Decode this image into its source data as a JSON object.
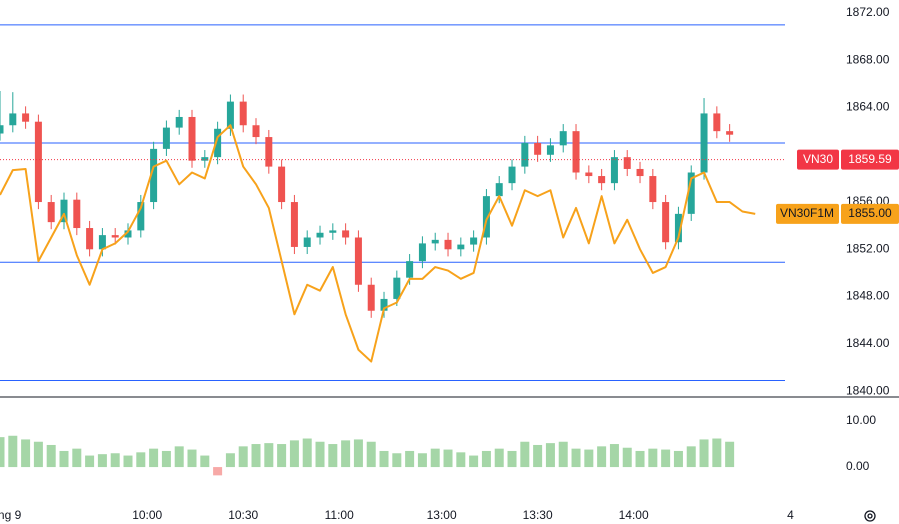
{
  "chart_data": {
    "type": "candlestick",
    "x": [
      0,
      4,
      8,
      12,
      16,
      20,
      24,
      28,
      32,
      36,
      40,
      44,
      48,
      52,
      56,
      60,
      64,
      68,
      72,
      76,
      80,
      84,
      88,
      92,
      96,
      100,
      104,
      108,
      112,
      116,
      120,
      124,
      128,
      132,
      136,
      140,
      144,
      148,
      152,
      156,
      160,
      164,
      168,
      172,
      176,
      180,
      184,
      188,
      192,
      196,
      200,
      204,
      208,
      212,
      216,
      220,
      224,
      228
    ],
    "xlim": [
      0,
      245.3
    ],
    "xticks": [
      {
        "value": 3,
        "label": "ng 9"
      },
      {
        "value": 46,
        "label": "10:00"
      },
      {
        "value": 76,
        "label": "10:30"
      },
      {
        "value": 106,
        "label": "11:00"
      },
      {
        "value": 138,
        "label": "13:00"
      },
      {
        "value": 168,
        "label": "13:30"
      },
      {
        "value": 198,
        "label": "14:00"
      },
      {
        "value": 247,
        "label": "4"
      }
    ],
    "ylim": [
      1839.5,
      1873.1
    ],
    "yticks": [
      {
        "value": 1872,
        "label": "1872.00"
      },
      {
        "value": 1868,
        "label": "1868.00"
      },
      {
        "value": 1864,
        "label": "1864.00"
      },
      {
        "value": 1856,
        "label": "1856.00"
      },
      {
        "value": 1852,
        "label": "1852.00"
      },
      {
        "value": 1848,
        "label": "1848.00"
      },
      {
        "value": 1844,
        "label": "1844.00"
      },
      {
        "value": 1840,
        "label": "1840.00"
      }
    ],
    "series": [
      {
        "name": "VN30",
        "color": "#f23645",
        "up_color": "#26a69a",
        "down_color": "#ef5350",
        "last": 1859.59,
        "open": [
          1861.8,
          1862.5,
          1863.5,
          1862.8,
          1856.0,
          1854.3,
          1856.2,
          1853.8,
          1852.0,
          1853.2,
          1853.0,
          1853.6,
          1856.0,
          1860.5,
          1862.3,
          1863.2,
          1859.5,
          1859.8,
          1862.2,
          1864.5,
          1862.5,
          1861.5,
          1859.0,
          1856.0,
          1852.2,
          1853.0,
          1853.4,
          1853.6,
          1853.0,
          1849.0,
          1846.8,
          1847.8,
          1849.6,
          1851.0,
          1852.5,
          1852.8,
          1852.0,
          1852.4,
          1853.0,
          1856.5,
          1857.6,
          1859.0,
          1861.0,
          1860.0,
          1860.8,
          1862.0,
          1858.5,
          1858.2,
          1857.6,
          1859.8,
          1858.8,
          1858.2,
          1856.0,
          1852.6,
          1855.0,
          1858.5,
          1863.5,
          1862.0
        ],
        "high": [
          1865.4,
          1865.3,
          1864.1,
          1863.4,
          1856.6,
          1856.8,
          1856.8,
          1854.4,
          1853.8,
          1853.8,
          1854.2,
          1856.6,
          1861.1,
          1862.9,
          1863.8,
          1863.8,
          1860.4,
          1862.8,
          1865.1,
          1865.1,
          1863.1,
          1862.1,
          1859.6,
          1856.6,
          1853.6,
          1854.0,
          1854.2,
          1854.2,
          1853.6,
          1849.6,
          1848.4,
          1850.2,
          1851.6,
          1853.1,
          1853.4,
          1853.4,
          1853.0,
          1853.6,
          1857.1,
          1858.2,
          1859.6,
          1861.6,
          1861.6,
          1861.4,
          1862.6,
          1862.6,
          1859.1,
          1858.8,
          1860.4,
          1860.4,
          1859.4,
          1858.8,
          1856.6,
          1855.6,
          1859.1,
          1864.8,
          1864.1,
          1862.6
        ],
        "low": [
          1861.2,
          1861.9,
          1862.2,
          1855.4,
          1853.7,
          1853.7,
          1853.2,
          1851.4,
          1851.4,
          1852.4,
          1852.4,
          1853.0,
          1855.4,
          1859.9,
          1861.7,
          1858.9,
          1858.9,
          1859.2,
          1861.6,
          1861.9,
          1860.9,
          1858.4,
          1855.4,
          1851.6,
          1851.6,
          1852.4,
          1852.8,
          1852.4,
          1848.4,
          1846.2,
          1846.2,
          1847.2,
          1849.0,
          1850.4,
          1851.9,
          1851.4,
          1851.4,
          1851.8,
          1852.4,
          1855.9,
          1857.0,
          1858.4,
          1859.4,
          1859.4,
          1860.2,
          1857.9,
          1857.6,
          1857.0,
          1857.0,
          1858.2,
          1857.6,
          1855.4,
          1852.0,
          1852.0,
          1854.4,
          1857.9,
          1861.4,
          1861.1
        ],
        "close": [
          1862.5,
          1863.5,
          1862.8,
          1856.0,
          1854.3,
          1856.2,
          1853.8,
          1852.0,
          1853.2,
          1853.0,
          1853.6,
          1856.0,
          1860.5,
          1862.3,
          1863.2,
          1859.5,
          1859.8,
          1862.2,
          1864.5,
          1862.5,
          1861.5,
          1859.0,
          1856.0,
          1852.2,
          1853.0,
          1853.4,
          1853.6,
          1853.0,
          1849.0,
          1846.8,
          1847.8,
          1849.6,
          1851.0,
          1852.5,
          1852.8,
          1852.0,
          1852.4,
          1853.0,
          1856.5,
          1857.6,
          1859.0,
          1861.0,
          1860.0,
          1860.8,
          1862.0,
          1858.5,
          1858.2,
          1857.6,
          1859.8,
          1858.8,
          1858.2,
          1856.0,
          1852.6,
          1855.0,
          1858.5,
          1863.5,
          1862.0,
          1861.7
        ]
      },
      {
        "name": "VN30F1M",
        "type": "line",
        "color": "#f7a21b",
        "last": {
          "value": 1855,
          "label": "1855.00"
        },
        "x": [
          0,
          4,
          8,
          12,
          16,
          20,
          24,
          28,
          32,
          36,
          40,
          44,
          48,
          52,
          56,
          60,
          64,
          68,
          72,
          76,
          80,
          84,
          88,
          92,
          96,
          100,
          104,
          108,
          112,
          116,
          120,
          124,
          128,
          132,
          136,
          140,
          144,
          148,
          152,
          156,
          160,
          164,
          168,
          172,
          176,
          180,
          184,
          188,
          192,
          196,
          200,
          204,
          208,
          212,
          216,
          220,
          224,
          228,
          232,
          236
        ],
        "values": [
          1856.6,
          1858.7,
          1858.8,
          1851.0,
          1853.0,
          1855.0,
          1851.5,
          1849.0,
          1852.0,
          1852.5,
          1853.5,
          1855.5,
          1859.0,
          1859.5,
          1857.5,
          1858.5,
          1858.0,
          1861.5,
          1862.5,
          1859.0,
          1857.5,
          1855.5,
          1851.0,
          1846.5,
          1849.0,
          1848.5,
          1850.5,
          1846.5,
          1843.5,
          1842.5,
          1847.0,
          1847.5,
          1849.5,
          1849.5,
          1850.5,
          1850.2,
          1849.5,
          1850.0,
          1854.5,
          1856.5,
          1854.0,
          1857.0,
          1856.5,
          1857.0,
          1853.0,
          1855.5,
          1852.5,
          1856.5,
          1852.5,
          1854.5,
          1852.0,
          1850.0,
          1850.5,
          1853.0,
          1858.0,
          1858.5,
          1856.0,
          1856.0,
          1855.2,
          1855.0
        ]
      }
    ],
    "hlines": {
      "color": "#2962ff",
      "values": [
        1871,
        1861,
        1850.9,
        1840.9
      ]
    },
    "volume": {
      "color": "#a5d6a7",
      "down_color": "#f7a9a7",
      "ylim": [
        -6.5,
        15
      ],
      "yticks": [
        {
          "value": 10,
          "label": "10.00"
        },
        {
          "value": 0,
          "label": "0.00"
        }
      ],
      "values": [
        6.5,
        6.8,
        6.0,
        5.5,
        4.8,
        3.5,
        4.0,
        2.5,
        2.8,
        3.0,
        2.5,
        3.2,
        4.0,
        3.5,
        4.5,
        3.8,
        2.5,
        -1.8,
        3.0,
        4.5,
        5.0,
        5.2,
        5.0,
        5.8,
        6.2,
        5.5,
        5.0,
        5.8,
        6.0,
        5.5,
        3.5,
        3.0,
        3.5,
        3.0,
        4.0,
        3.8,
        3.2,
        2.5,
        3.5,
        4.0,
        3.5,
        5.5,
        4.8,
        5.2,
        5.5,
        4.0,
        3.8,
        4.5,
        5.0,
        4.2,
        3.5,
        4.0,
        3.8,
        3.5,
        4.5,
        6.0,
        6.2,
        5.5
      ]
    }
  }
}
